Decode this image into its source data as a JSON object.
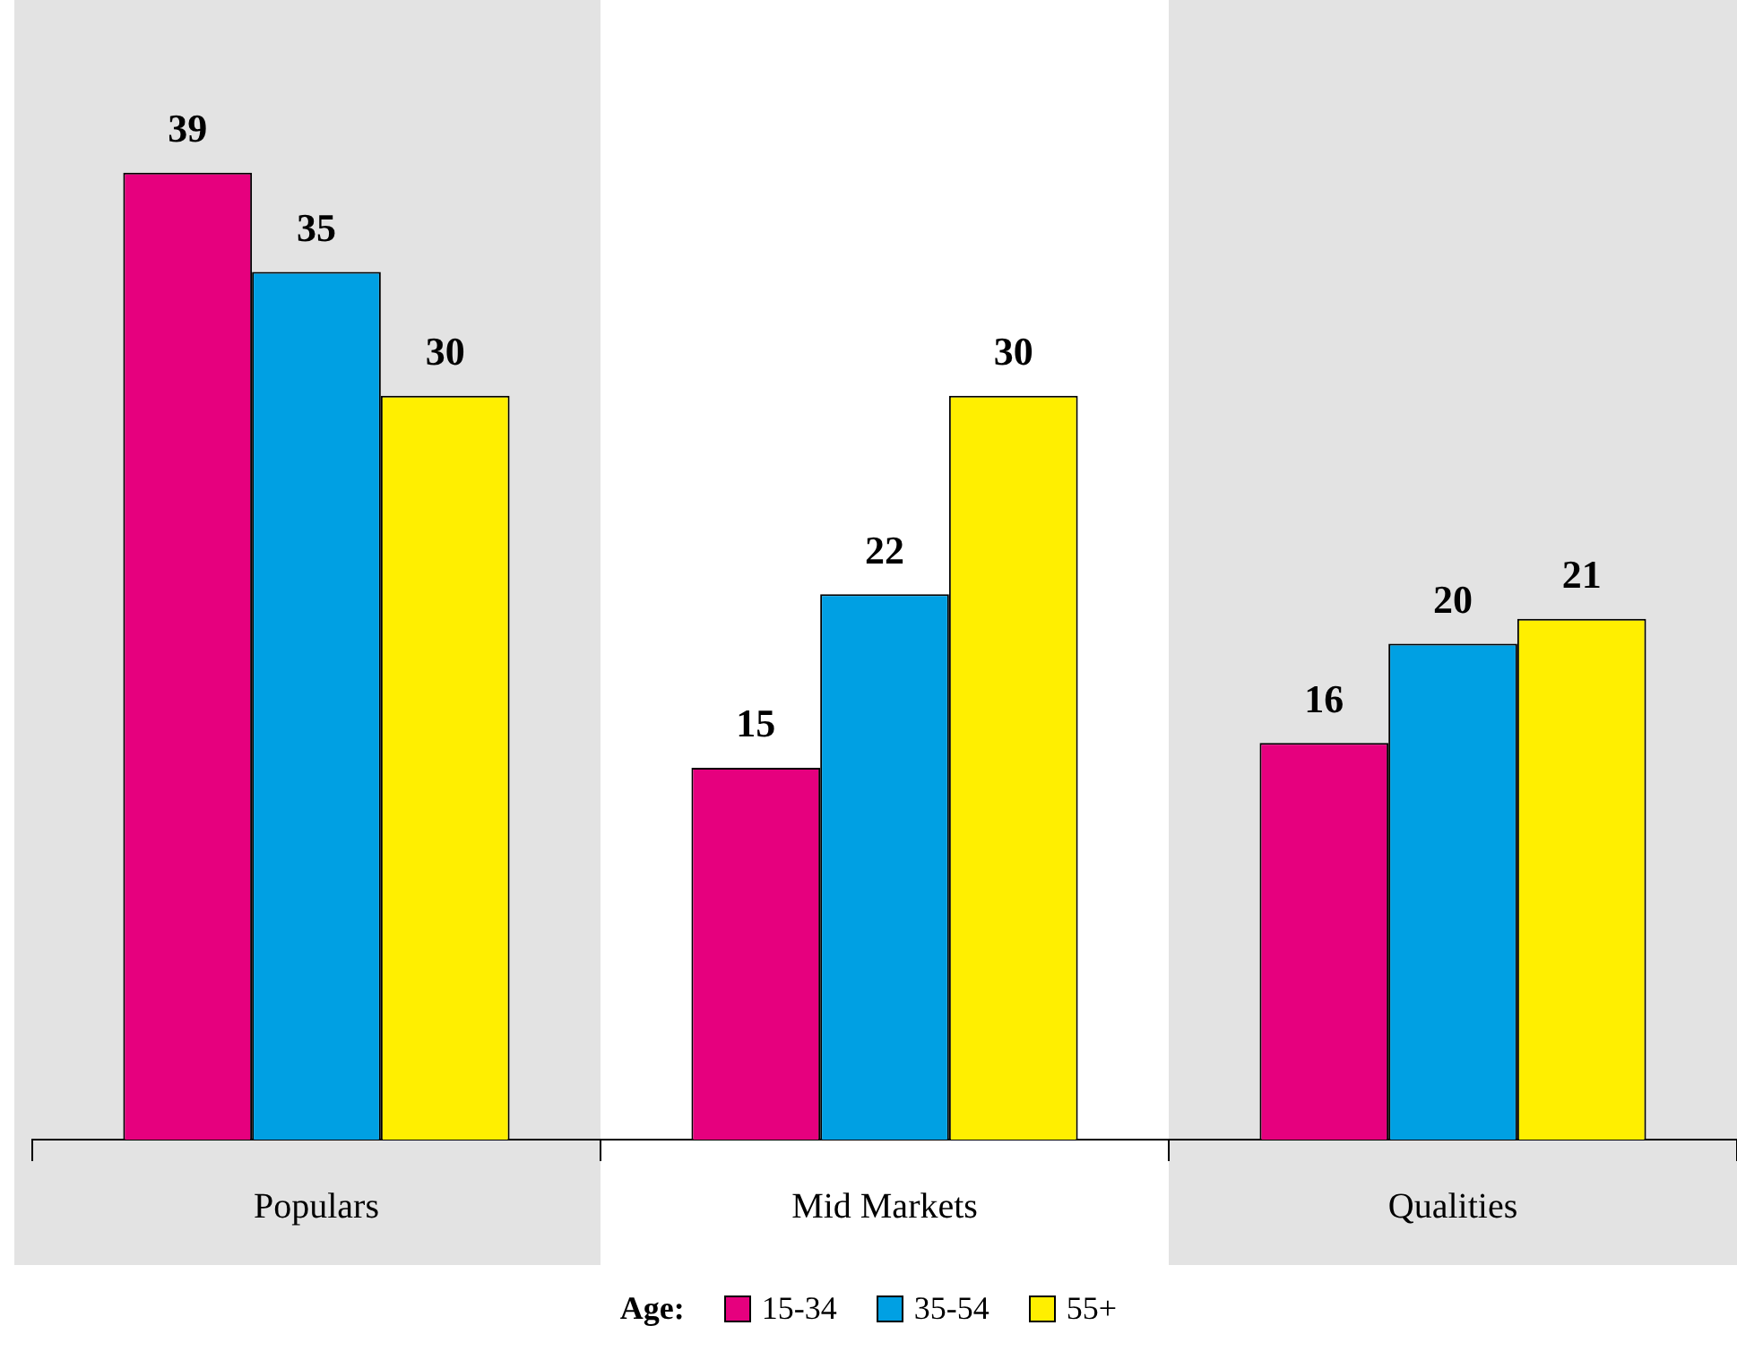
{
  "chart_data": {
    "type": "bar",
    "categories": [
      "Populars",
      "Mid Markets",
      "Qualities"
    ],
    "series": [
      {
        "name": "15-34",
        "color": "#e6007e",
        "values": [
          39,
          15,
          16
        ]
      },
      {
        "name": "35-54",
        "color": "#00a0e3",
        "values": [
          35,
          22,
          20
        ]
      },
      {
        "name": "55+",
        "color": "#ffef00",
        "values": [
          30,
          30,
          21
        ]
      }
    ],
    "legend_title": "Age:",
    "legend": "bottom",
    "data_labels": true,
    "grid": false,
    "tick_labels": "x"
  }
}
